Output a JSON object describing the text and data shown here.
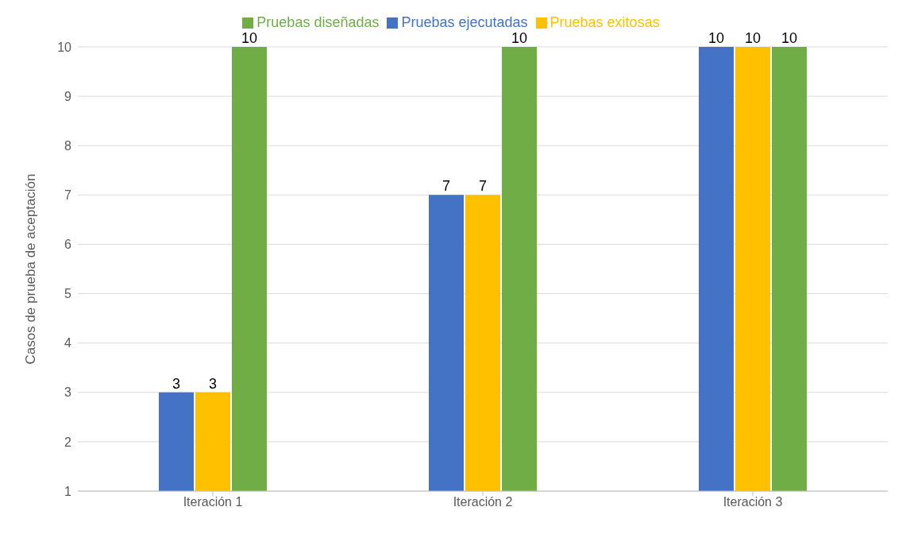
{
  "chart_data": {
    "type": "bar",
    "ylabel": "Casos de prueba de aceptación",
    "categories": [
      "Iteración 1",
      "Iteración 2",
      "Iteración 3"
    ],
    "series": [
      {
        "name": "Pruebas ejecutadas",
        "color": "#4472c4",
        "values": [
          3,
          7,
          10
        ]
      },
      {
        "name": "Pruebas exitosas",
        "color": "#ffc000",
        "values": [
          3,
          7,
          10
        ]
      },
      {
        "name": "Pruebas diseñadas",
        "color": "#70ad47",
        "values": [
          10,
          10,
          10
        ]
      }
    ],
    "ylim": [
      1,
      10
    ],
    "yticks": [
      1,
      2,
      3,
      4,
      5,
      6,
      7,
      8,
      9,
      10
    ],
    "grid": "y",
    "legend": "top",
    "data_labels": true
  }
}
